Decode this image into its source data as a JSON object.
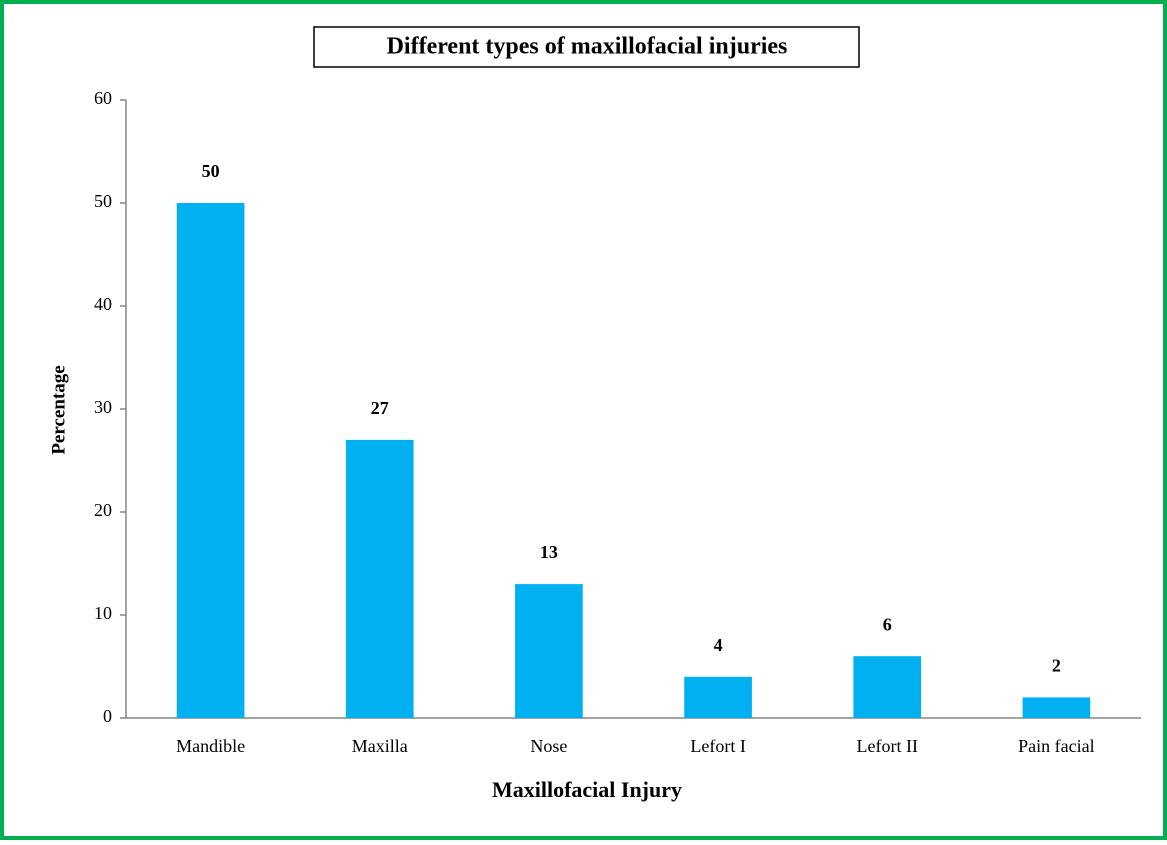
{
  "chart_data": {
    "type": "bar",
    "title": "Different types of maxillofacial injuries",
    "x_label": "Maxillofacial Injury",
    "y_label": "Percentage",
    "categories": [
      "Mandible",
      "Maxilla",
      "Nose",
      "Lefort I",
      "Lefort II",
      "Pain facial"
    ],
    "values": [
      50,
      27,
      13,
      4,
      6,
      2
    ],
    "color": "#00b0f0",
    "ylim": [
      0,
      60
    ],
    "yticks": [
      0,
      10,
      20,
      30,
      40,
      50,
      60
    ],
    "grid": false
  }
}
